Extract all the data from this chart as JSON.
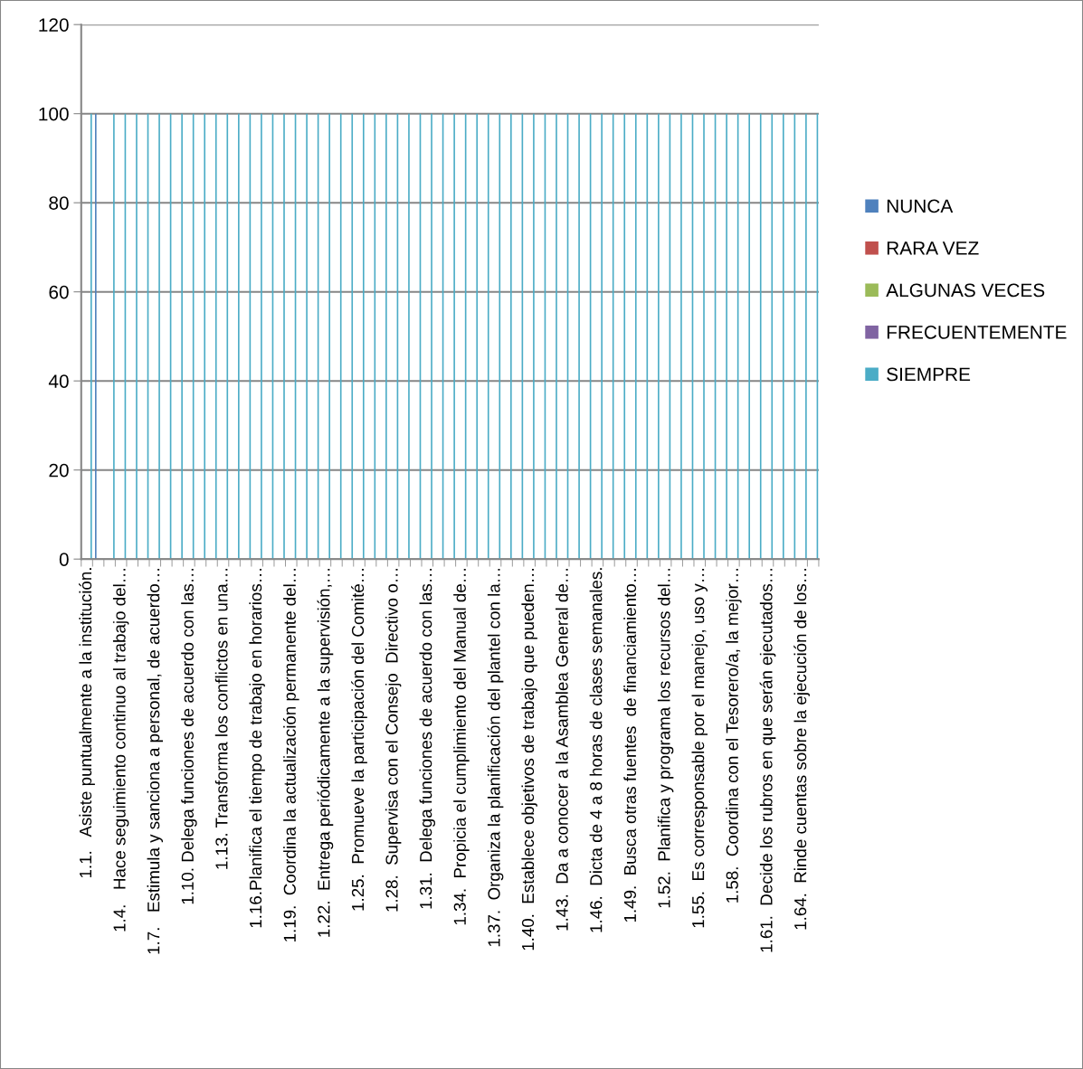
{
  "chart_data": {
    "type": "bar",
    "categories": [
      "1.1.   Asiste puntualmente a la institución.",
      null,
      null,
      "1.4.   Hace seguimiento continuo al trabajo del…",
      null,
      null,
      "1.7.   Estimula y sanciona a personal, de acuerdo…",
      null,
      null,
      "1.10. Delega funciones de acuerdo con las…",
      null,
      null,
      "1.13. Transforma los conflictos en una…",
      null,
      null,
      "1.16.Planifica el tiempo de trabajo en horarios…",
      null,
      null,
      "1.19.  Coordina la actualización permanente del…",
      null,
      null,
      "1.22.  Entrega periódicamente a la supervisión,…",
      null,
      null,
      "1.25.  Promueve la participación del Comité…",
      null,
      null,
      "1.28.  Supervisa con el Consejo  Directivo o…",
      null,
      null,
      "1.31.  Delega funciones de acuerdo con las…",
      null,
      null,
      "1.34.  Propicia el cumplimiento del Manual de…",
      null,
      null,
      "1.37.  Organiza la planificación del plantel con la…",
      null,
      null,
      "1.40.  Establece objetivos de trabajo que pueden…",
      null,
      null,
      "1.43.  Da a conocer a la Asamblea General de…",
      null,
      null,
      "1.46.  Dicta de 4 a 8 horas de clases semanales.",
      null,
      null,
      "1.49.  Busca otras fuentes  de financiamiento…",
      null,
      null,
      "1.52.  Planifica y programa los recursos del…",
      null,
      null,
      "1.55.  Es corresponsable por el manejo, uso y…",
      null,
      null,
      "1.58.  Coordina con el Tesorero/a, la mejor…",
      null,
      null,
      "1.61.  Decide los rubros en que serán ejecutados…",
      null,
      null,
      "1.64.  Rinde cuentas sobre la ejecución de los…",
      null
    ],
    "series": [
      {
        "name": "NUNCA",
        "color": "#4f81bd",
        "values": [
          0,
          100,
          0,
          0,
          0,
          0,
          0,
          0,
          0,
          0,
          0,
          0,
          0,
          0,
          0,
          0,
          0,
          0,
          0,
          0,
          0,
          0,
          0,
          0,
          0,
          0,
          0,
          0,
          0,
          0,
          0,
          0,
          0,
          0,
          0,
          0,
          0,
          0,
          0,
          0,
          0,
          0,
          0,
          0,
          0,
          0,
          0,
          0,
          0,
          0,
          0,
          0,
          0,
          0,
          0,
          0,
          0,
          0,
          0,
          0,
          0,
          0,
          0,
          0,
          0
        ]
      },
      {
        "name": "RARA VEZ",
        "color": "#c0504d",
        "values": [
          0,
          0,
          0,
          0,
          0,
          0,
          0,
          0,
          0,
          0,
          0,
          0,
          0,
          0,
          0,
          0,
          0,
          0,
          0,
          0,
          0,
          0,
          0,
          0,
          0,
          0,
          0,
          0,
          0,
          0,
          0,
          0,
          0,
          0,
          0,
          0,
          0,
          0,
          0,
          0,
          0,
          0,
          0,
          0,
          0,
          0,
          0,
          0,
          0,
          0,
          0,
          0,
          0,
          0,
          0,
          0,
          0,
          0,
          0,
          0,
          0,
          0,
          0,
          0,
          0
        ]
      },
      {
        "name": "ALGUNAS VECES",
        "color": "#9bbb59",
        "values": [
          0,
          0,
          0,
          0,
          0,
          0,
          0,
          0,
          0,
          0,
          0,
          0,
          0,
          0,
          0,
          0,
          0,
          0,
          0,
          0,
          0,
          0,
          0,
          0,
          0,
          0,
          0,
          0,
          0,
          0,
          0,
          0,
          0,
          0,
          0,
          0,
          0,
          0,
          0,
          0,
          0,
          0,
          0,
          0,
          0,
          0,
          0,
          0,
          0,
          0,
          0,
          0,
          0,
          0,
          0,
          0,
          0,
          0,
          0,
          0,
          0,
          0,
          0,
          0,
          0
        ]
      },
      {
        "name": "FRECUENTEMENTE",
        "color": "#8064a2",
        "values": [
          0,
          0,
          0,
          0,
          0,
          0,
          0,
          0,
          0,
          0,
          0,
          0,
          0,
          0,
          0,
          0,
          0,
          0,
          0,
          0,
          0,
          0,
          0,
          0,
          0,
          0,
          0,
          0,
          0,
          0,
          0,
          0,
          0,
          0,
          0,
          0,
          0,
          0,
          0,
          0,
          0,
          0,
          0,
          0,
          0,
          0,
          0,
          0,
          0,
          0,
          0,
          0,
          0,
          0,
          0,
          0,
          0,
          0,
          0,
          0,
          0,
          0,
          0,
          0,
          0
        ]
      },
      {
        "name": "SIEMPRE",
        "color": "#4bacc6",
        "values": [
          100,
          0,
          100,
          100,
          100,
          100,
          100,
          100,
          100,
          100,
          100,
          100,
          100,
          100,
          100,
          100,
          100,
          100,
          100,
          100,
          100,
          100,
          100,
          100,
          100,
          100,
          100,
          100,
          100,
          100,
          100,
          100,
          100,
          100,
          100,
          100,
          100,
          100,
          100,
          100,
          100,
          100,
          100,
          100,
          100,
          100,
          100,
          100,
          100,
          100,
          100,
          100,
          100,
          100,
          100,
          100,
          100,
          100,
          100,
          100,
          100,
          100,
          100,
          100,
          100
        ]
      }
    ],
    "ylim": [
      0,
      120
    ],
    "yticks": [
      0,
      20,
      40,
      60,
      80,
      100,
      120
    ],
    "grid": "y",
    "legend": "right"
  }
}
